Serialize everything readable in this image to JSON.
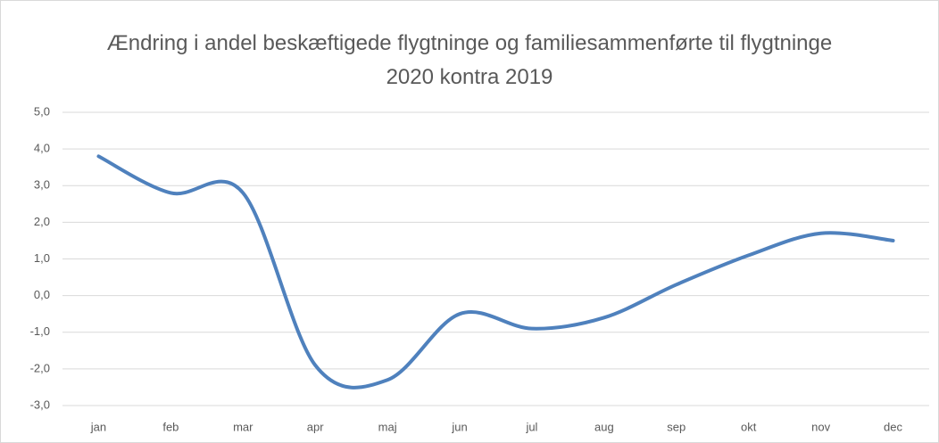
{
  "chart_data": {
    "type": "line",
    "title": "Ændring i andel beskæftigede flygtninge og familiesammenførte til flygtninge 2020 kontra 2019",
    "categories": [
      "jan",
      "feb",
      "mar",
      "apr",
      "maj",
      "jun",
      "jul",
      "aug",
      "sep",
      "okt",
      "nov",
      "dec"
    ],
    "series": [
      {
        "name": "Ændring",
        "color": "#4f81bd",
        "values": [
          3.8,
          2.8,
          2.8,
          -1.9,
          -2.3,
          -0.5,
          -0.9,
          -0.6,
          0.3,
          1.1,
          1.7,
          1.5
        ]
      }
    ],
    "ylim": [
      -3,
      5
    ],
    "yticks": [
      {
        "value": -3,
        "label": "-3,0"
      },
      {
        "value": -2,
        "label": "-2,0"
      },
      {
        "value": -1,
        "label": "-1,0"
      },
      {
        "value": 0,
        "label": "0,0"
      },
      {
        "value": 1,
        "label": "1,0"
      },
      {
        "value": 2,
        "label": "2,0"
      },
      {
        "value": 3,
        "label": "3,0"
      },
      {
        "value": 4,
        "label": "4,0"
      },
      {
        "value": 5,
        "label": "5,0"
      }
    ],
    "grid": true,
    "smooth": true
  }
}
